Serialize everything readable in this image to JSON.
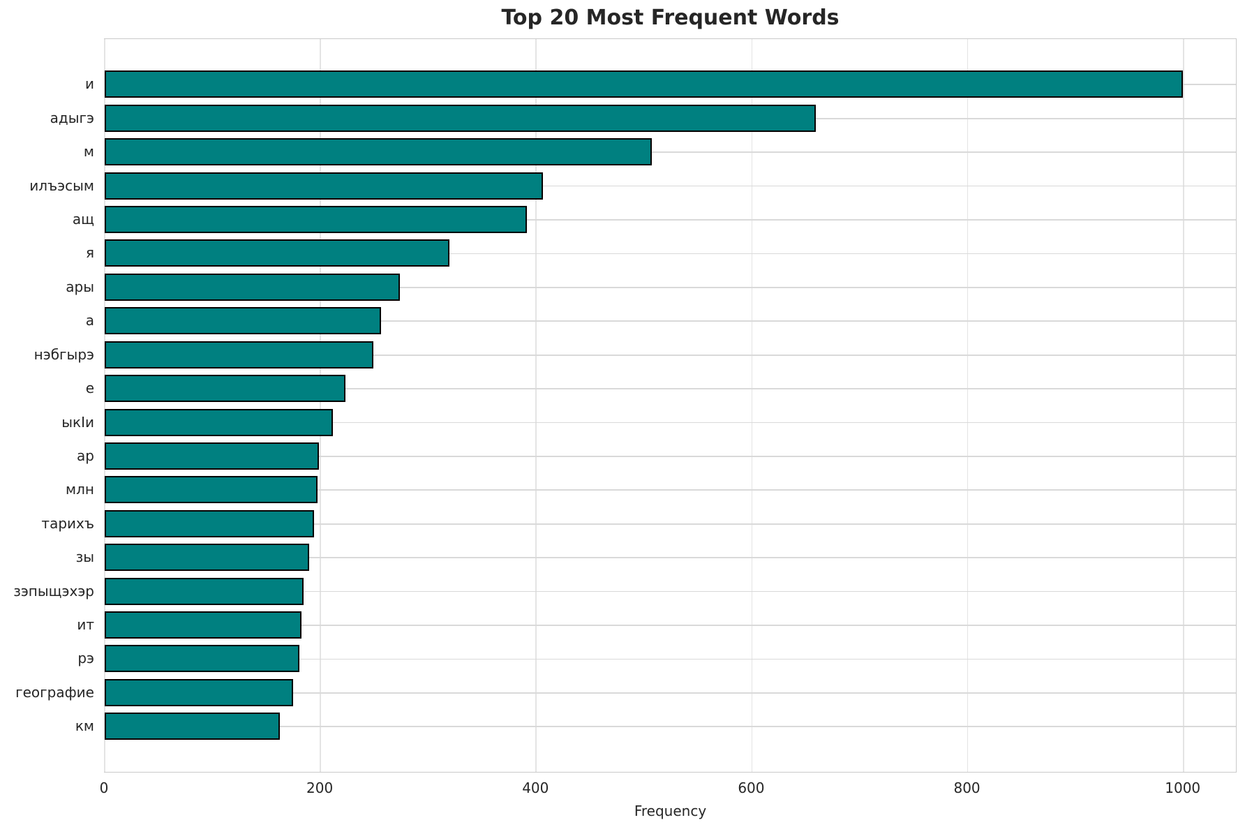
{
  "chart_data": {
    "type": "bar",
    "orientation": "horizontal",
    "title": "Top 20 Most Frequent Words",
    "xlabel": "Frequency",
    "ylabel": "",
    "categories": [
      "и",
      "адыгэ",
      "м",
      "илъэсым",
      "ащ",
      "я",
      "ары",
      "а",
      "нэбгырэ",
      "е",
      "ыкIи",
      "ар",
      "млн",
      "тарихъ",
      "зы",
      "зэпыщэхэр",
      "ит",
      "рэ",
      "географие",
      "км"
    ],
    "values": [
      1000,
      660,
      508,
      407,
      392,
      320,
      274,
      257,
      250,
      224,
      212,
      199,
      198,
      195,
      190,
      185,
      183,
      181,
      175,
      163
    ],
    "xticks": [
      0,
      200,
      400,
      600,
      800,
      1000
    ],
    "xlim": [
      0,
      1050
    ],
    "grid": true,
    "legend": "none",
    "bar_color": "#008080",
    "bar_edge_color": "#000000",
    "background_color": "#ffffff",
    "grid_color": "#dddddd",
    "text_color": "#262626"
  }
}
